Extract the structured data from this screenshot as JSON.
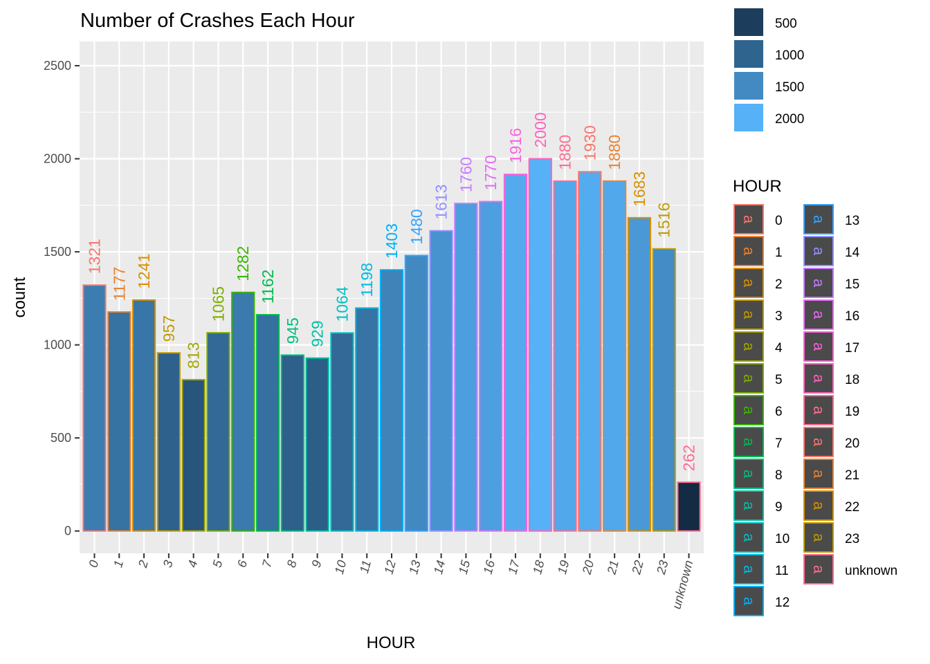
{
  "chart_data": {
    "type": "bar",
    "title": "Number of Crashes Each Hour",
    "xlabel": "HOUR",
    "ylabel": "count",
    "ylim": [
      -120,
      2630
    ],
    "yticks": [
      0,
      500,
      1000,
      1500,
      2000,
      2500
    ],
    "grid": true,
    "categories": [
      "0",
      "1",
      "2",
      "3",
      "4",
      "5",
      "6",
      "7",
      "8",
      "9",
      "10",
      "11",
      "12",
      "13",
      "14",
      "15",
      "16",
      "17",
      "18",
      "19",
      "20",
      "21",
      "22",
      "23",
      "unknown"
    ],
    "values": [
      1321,
      1177,
      1241,
      957,
      813,
      1065,
      1282,
      1162,
      945,
      929,
      1064,
      1198,
      1403,
      1480,
      1613,
      1760,
      1770,
      1916,
      2000,
      1880,
      1930,
      1880,
      1683,
      1516,
      262
    ],
    "outline_colors": [
      "#F8766D",
      "#EA8331",
      "#D89000",
      "#C09B00",
      "#A3A500",
      "#7CAE00",
      "#39B600",
      "#00BB4E",
      "#00BF7D",
      "#00C1A3",
      "#00BFC4",
      "#00BAE0",
      "#00B0F6",
      "#35A2FF",
      "#9590FF",
      "#C77CFF",
      "#E76BF3",
      "#FA62DB",
      "#FF62BC",
      "#FF6C91",
      "#F8766D",
      "#EA8331",
      "#D89000",
      "#C09B00",
      "#FF6C91"
    ],
    "fill_legend": {
      "breaks": [
        500,
        1000,
        1500,
        2000
      ],
      "labels": [
        "500",
        "1000",
        "1500",
        "2000"
      ],
      "placement": "right",
      "low_color": "#132B43",
      "high_color": "#56B1F7"
    },
    "color_legend": {
      "title": "HOUR",
      "glyph": "a",
      "placement": "right",
      "entries": [
        "0",
        "1",
        "2",
        "3",
        "4",
        "5",
        "6",
        "7",
        "8",
        "9",
        "10",
        "11",
        "12",
        "13",
        "14",
        "15",
        "16",
        "17",
        "18",
        "19",
        "20",
        "21",
        "22",
        "23",
        "unknown"
      ]
    }
  }
}
